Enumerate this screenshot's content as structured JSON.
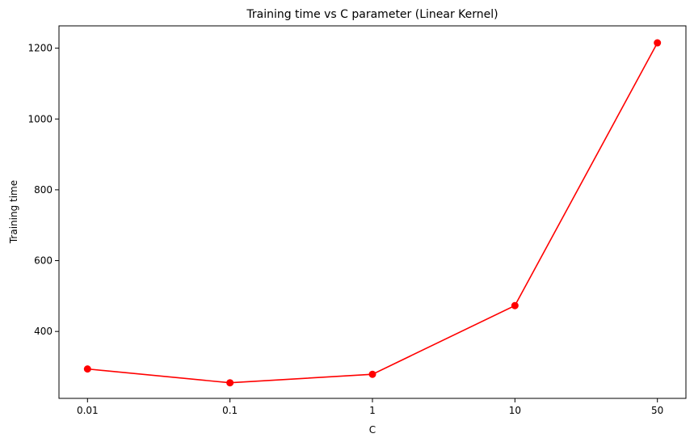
{
  "chart_data": {
    "type": "line",
    "title": "Training time vs C parameter (Linear Kernel)",
    "xlabel": "C",
    "ylabel": "Training time",
    "categories": [
      "0.01",
      "0.1",
      "1",
      "10",
      "50"
    ],
    "series": [
      {
        "values": [
          294,
          255,
          279,
          473,
          1215
        ],
        "color": "#ff0000",
        "marker": "circle"
      }
    ],
    "yticks": [
      400,
      600,
      800,
      1000,
      1200
    ],
    "ylim": [
      211,
      1263
    ],
    "grid": false,
    "legend": "none"
  }
}
